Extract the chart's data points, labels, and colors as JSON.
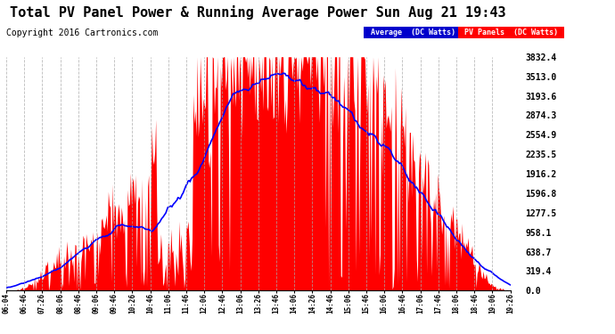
{
  "title": "Total PV Panel Power & Running Average Power Sun Aug 21 19:43",
  "copyright": "Copyright 2016 Cartronics.com",
  "ylabel_right_ticks": [
    0.0,
    319.4,
    638.7,
    958.1,
    1277.5,
    1596.8,
    1916.2,
    2235.5,
    2554.9,
    2874.3,
    3193.6,
    3513.0,
    3832.4
  ],
  "ymax": 3832.4,
  "ymin": 0.0,
  "bg_color": "#ffffff",
  "plot_bg_color": "#ffffff",
  "bar_color": "#ff0000",
  "line_color": "#0000ff",
  "grid_color": "#aaaaaa",
  "legend_avg_bg": "#0000cc",
  "legend_avg_text": "Average  (DC Watts)",
  "legend_pv_bg": "#ff0000",
  "legend_pv_text": "PV Panels  (DC Watts)",
  "title_fontsize": 11,
  "copyright_fontsize": 7,
  "x_tick_labels": [
    "06:04",
    "06:46",
    "07:26",
    "08:06",
    "08:46",
    "09:06",
    "09:46",
    "10:26",
    "10:46",
    "11:06",
    "11:46",
    "12:06",
    "12:46",
    "13:06",
    "13:26",
    "13:46",
    "14:06",
    "14:26",
    "14:46",
    "15:06",
    "15:46",
    "16:06",
    "16:46",
    "17:06",
    "17:46",
    "18:06",
    "18:46",
    "19:06",
    "19:26"
  ]
}
